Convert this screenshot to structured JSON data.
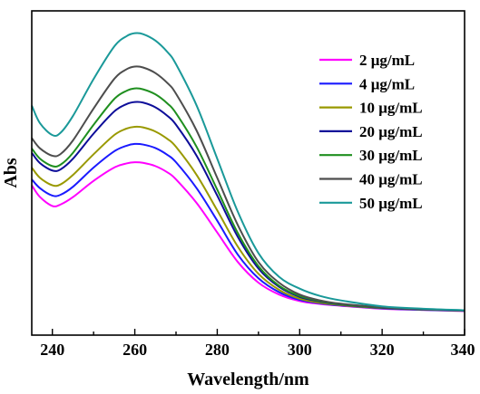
{
  "chart_data": {
    "type": "line",
    "xlabel": "Wavelength/nm",
    "ylabel": "Abs",
    "xlim": [
      235,
      340
    ],
    "ylim": [
      0,
      1
    ],
    "x_ticks": [
      240,
      260,
      280,
      300,
      320,
      340
    ],
    "y_ticks_shown": false,
    "grid": false,
    "legend_position": "top-right",
    "series": [
      {
        "name": "2 μg/mL",
        "color": "#ff00ff",
        "x": [
          235,
          237,
          240,
          242,
          245,
          250,
          255,
          258,
          260,
          262,
          265,
          268,
          270,
          275,
          280,
          285,
          290,
          295,
          300,
          305,
          310,
          320,
          330,
          340
        ],
        "y": [
          0.44,
          0.4,
          0.37,
          0.375,
          0.4,
          0.455,
          0.5,
          0.514,
          0.518,
          0.516,
          0.505,
          0.483,
          0.46,
          0.38,
          0.28,
          0.18,
          0.11,
          0.07,
          0.048,
          0.038,
          0.032,
          0.022,
          0.018,
          0.014
        ]
      },
      {
        "name": "4 μg/mL",
        "color": "#1a1aff",
        "x": [
          235,
          237,
          240,
          242,
          245,
          250,
          255,
          258,
          260,
          262,
          265,
          268,
          270,
          275,
          280,
          285,
          290,
          295,
          300,
          305,
          310,
          320,
          330,
          340
        ],
        "y": [
          0.46,
          0.43,
          0.405,
          0.408,
          0.435,
          0.5,
          0.555,
          0.574,
          0.58,
          0.578,
          0.566,
          0.542,
          0.518,
          0.43,
          0.32,
          0.205,
          0.125,
          0.078,
          0.052,
          0.04,
          0.033,
          0.023,
          0.018,
          0.015
        ]
      },
      {
        "name": "10 μg/mL",
        "color": "#999900",
        "x": [
          235,
          237,
          240,
          242,
          245,
          250,
          255,
          258,
          260,
          262,
          265,
          268,
          270,
          275,
          280,
          285,
          290,
          295,
          300,
          305,
          310,
          320,
          330,
          340
        ],
        "y": [
          0.5,
          0.465,
          0.44,
          0.443,
          0.475,
          0.545,
          0.61,
          0.632,
          0.638,
          0.636,
          0.622,
          0.596,
          0.57,
          0.475,
          0.355,
          0.232,
          0.14,
          0.086,
          0.056,
          0.042,
          0.034,
          0.024,
          0.019,
          0.015
        ]
      },
      {
        "name": "20 μg/mL",
        "color": "#0d0d99",
        "x": [
          235,
          237,
          240,
          242,
          245,
          250,
          255,
          258,
          260,
          262,
          265,
          268,
          270,
          275,
          280,
          285,
          290,
          295,
          300,
          305,
          310,
          320,
          330,
          340
        ],
        "y": [
          0.55,
          0.515,
          0.49,
          0.494,
          0.53,
          0.615,
          0.69,
          0.715,
          0.722,
          0.72,
          0.704,
          0.674,
          0.645,
          0.54,
          0.405,
          0.265,
          0.158,
          0.096,
          0.062,
          0.046,
          0.036,
          0.025,
          0.019,
          0.015
        ]
      },
      {
        "name": "30 μg/mL",
        "color": "#1f8f1f",
        "x": [
          235,
          237,
          240,
          242,
          245,
          250,
          255,
          258,
          260,
          262,
          265,
          268,
          270,
          275,
          280,
          285,
          290,
          295,
          300,
          305,
          310,
          320,
          330,
          340
        ],
        "y": [
          0.565,
          0.53,
          0.505,
          0.51,
          0.55,
          0.645,
          0.732,
          0.76,
          0.768,
          0.765,
          0.748,
          0.716,
          0.684,
          0.57,
          0.425,
          0.278,
          0.166,
          0.1,
          0.065,
          0.048,
          0.037,
          0.026,
          0.02,
          0.016
        ]
      },
      {
        "name": "40 μg/mL",
        "color": "#4d4d4d",
        "x": [
          235,
          237,
          240,
          242,
          245,
          250,
          255,
          258,
          260,
          262,
          265,
          268,
          270,
          275,
          280,
          285,
          290,
          295,
          300,
          305,
          310,
          320,
          330,
          340
        ],
        "y": [
          0.6,
          0.565,
          0.54,
          0.546,
          0.592,
          0.7,
          0.8,
          0.833,
          0.842,
          0.839,
          0.82,
          0.785,
          0.75,
          0.625,
          0.465,
          0.305,
          0.18,
          0.11,
          0.07,
          0.05,
          0.039,
          0.027,
          0.02,
          0.016
        ]
      },
      {
        "name": "50 μg/mL",
        "color": "#1a9999",
        "x": [
          235,
          237,
          240,
          242,
          245,
          250,
          255,
          258,
          260,
          262,
          265,
          268,
          270,
          275,
          280,
          285,
          290,
          295,
          300,
          305,
          310,
          320,
          330,
          340
        ],
        "y": [
          0.71,
          0.65,
          0.61,
          0.618,
          0.675,
          0.8,
          0.91,
          0.945,
          0.955,
          0.952,
          0.93,
          0.89,
          0.85,
          0.71,
          0.53,
          0.35,
          0.21,
          0.13,
          0.09,
          0.065,
          0.05,
          0.03,
          0.022,
          0.017
        ]
      }
    ]
  }
}
